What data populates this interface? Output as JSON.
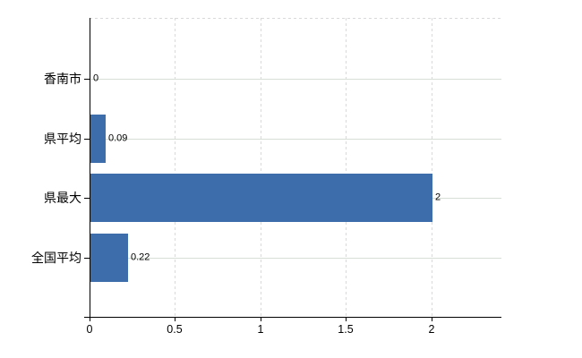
{
  "chart_data": {
    "type": "bar",
    "orientation": "horizontal",
    "title": "",
    "xlabel": "",
    "ylabel": "",
    "categories": [
      "香南市",
      "県平均",
      "県最大",
      "全国平均"
    ],
    "values": [
      0,
      0.09,
      2,
      0.22
    ],
    "value_labels": [
      "0",
      "0.09",
      "2",
      "0.22"
    ],
    "x_ticks": [
      {
        "value": 0,
        "label": "0"
      },
      {
        "value": 0.5,
        "label": "0.5"
      },
      {
        "value": 1,
        "label": "1"
      },
      {
        "value": 1.5,
        "label": "1.5"
      },
      {
        "value": 2,
        "label": "2"
      }
    ],
    "xlim": [
      0,
      2.41
    ],
    "legend": "none",
    "grid": {
      "vertical_lines": "dashed",
      "horizontal_lines": "solid, one per category row",
      "top_border": "dashed"
    },
    "colors": {
      "bar": "#3e6dab",
      "axis": "#000000",
      "text": "#000000",
      "grid_vertical": "#d9d9dc",
      "grid_horizontal": "#d6ded6",
      "background": "#ffffff"
    }
  }
}
